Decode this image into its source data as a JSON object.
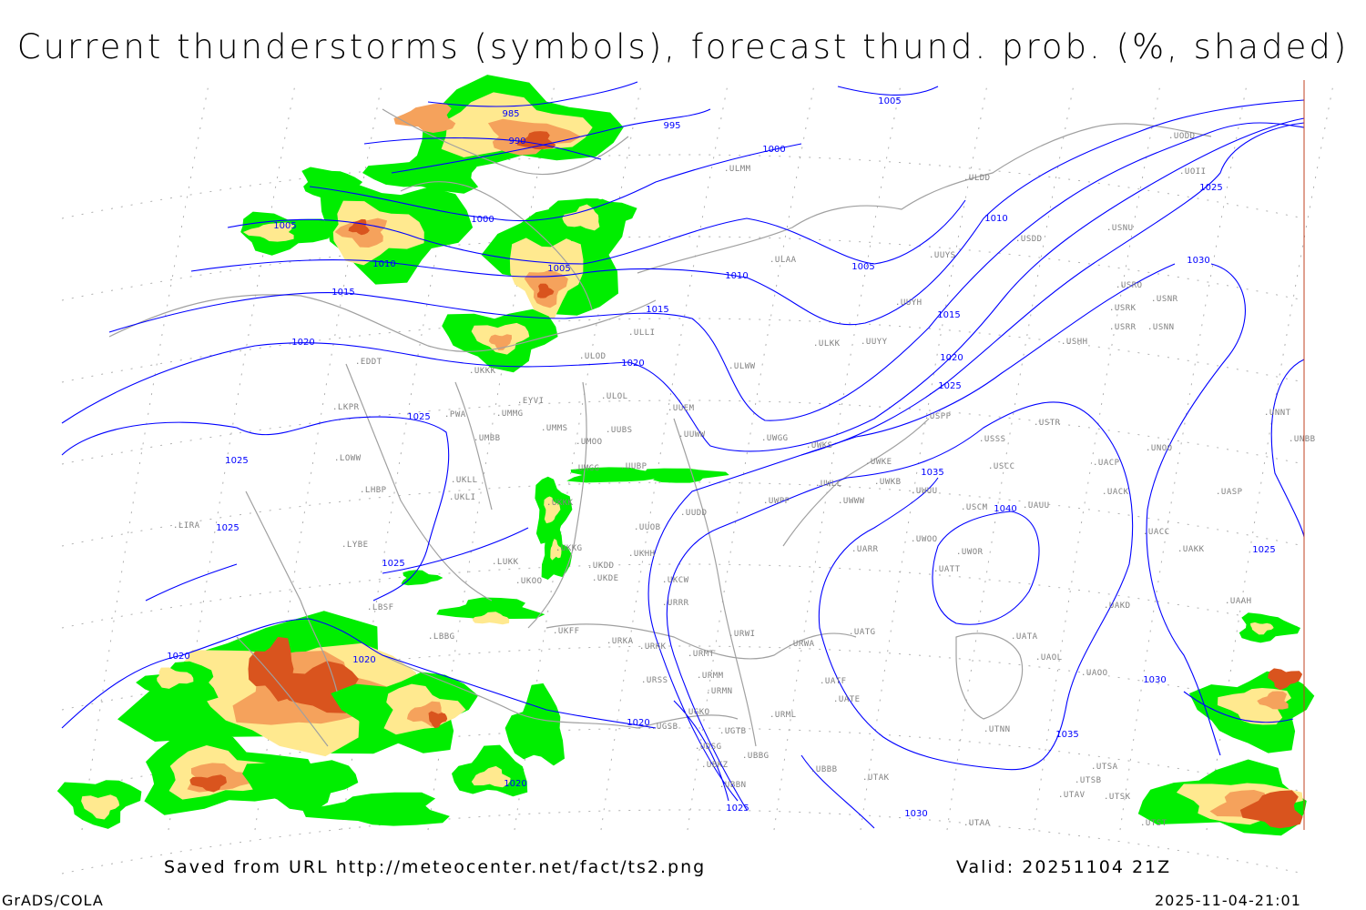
{
  "title": "Current thunderstorms (symbols), forecast thund. prob. (%, shaded)",
  "footer": {
    "saved_from": "Saved from URL http://meteocenter.net/fact/ts2.png",
    "valid": "Valid: 20251104 21Z",
    "software": "GrADS/COLA",
    "timestamp": "2025-11-04-21:01"
  },
  "colors": {
    "isobar": "#0000ff",
    "coastline": "#a0a0a0",
    "station_label": "#808080",
    "prob_low": "#00ee00",
    "prob_mid": "#ffe98f",
    "prob_high": "#f5a25c",
    "prob_max": "#d9541e"
  },
  "isobar_labels": [
    "985",
    "990",
    "995",
    "1000",
    "1000",
    "1005",
    "1005",
    "1005",
    "1005",
    "1010",
    "1010",
    "1010",
    "1015",
    "1015",
    "1015",
    "1020",
    "1020",
    "1020",
    "1025",
    "1025",
    "1025",
    "1025",
    "1025",
    "1025",
    "1025",
    "1025",
    "1020",
    "1020",
    "1020",
    "1020",
    "1030",
    "1030",
    "1030",
    "1035",
    "1035",
    "1040"
  ],
  "stations": [
    "EDDT",
    "UKKK",
    "EYVI",
    "ULOL",
    "ULOD",
    "UMMG",
    "PWA",
    "LKPR",
    "UMBB",
    "UMMS",
    "UMOO",
    "UUBS",
    "UUEM",
    "UUWW",
    "UMGG",
    "UUBP",
    "LOWW",
    "LHBP",
    "UKLL",
    "UKLI",
    "UKKK",
    "UUDD",
    "UUOB",
    "LIRA",
    "LYBE",
    "UKKG",
    "UKDD",
    "UKHH",
    "LUKK",
    "UKDE",
    "UKOO",
    "UKCW",
    "URRR",
    "LBSF",
    "LBBG",
    "UKFF",
    "URKA",
    "URKK",
    "URMT",
    "URSS",
    "URMM",
    "URMN",
    "UGKO",
    "UGSB",
    "UGTB",
    "UDSG",
    "UBBG",
    "UBKZ",
    "UBBN",
    "UBBB",
    "URML",
    "URWI",
    "URWA",
    "UATG",
    "UATE",
    "UATF",
    "UTAK",
    "UTAA",
    "UTNN",
    "UATA",
    "UAOL",
    "UAOO",
    "UAKD",
    "UATT",
    "UWOR",
    "UWOO",
    "UARR",
    "UWPP",
    "UWWW",
    "UWLL",
    "UWKB",
    "UWKE",
    "UWUU",
    "USCM",
    "UAUU",
    "USCC",
    "USSS",
    "USTR",
    "UACP",
    "UACK",
    "UACC",
    "UAKK",
    "UASP",
    "UNOO",
    "UNBB",
    "UNNT",
    "USPP",
    "UWGG",
    "UWKS",
    "ULKK",
    "UUYY",
    "UUYH",
    "UUYS",
    "ULAA",
    "ULLI",
    "ULWW",
    "ULDD",
    "ULMM",
    "USDD",
    "USNU",
    "UODD",
    "UOII",
    "USRO",
    "USRK",
    "USNR",
    "USRR",
    "USNN",
    "USHH",
    "UAAH",
    "UTSA",
    "UTSB",
    "UTSK",
    "UTAV",
    "UTST"
  ]
}
